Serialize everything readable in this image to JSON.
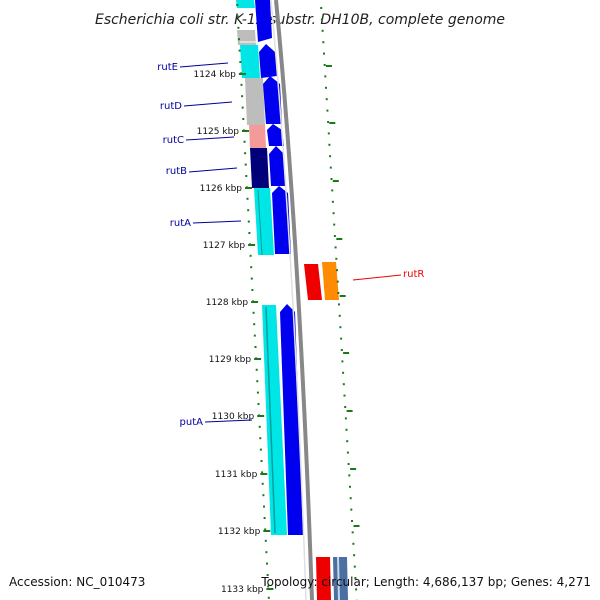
{
  "title": "Escherichia coli str. K-12 substr. DH10B, complete genome",
  "footer": {
    "accession": "Accession: NC_010473",
    "summary": "Topology: circular; Length: 4,686,137 bp; Genes: 4,271"
  },
  "colors": {
    "cyan": "#00e5e5",
    "blue": "#0000ee",
    "navy": "#00007a",
    "gray": "#bdbdbd",
    "pink": "#f59a9a",
    "red": "#ee0000",
    "orange": "#ff8c00",
    "backbone": "#888888",
    "tick": "#1a7a1a",
    "label_blue": "#00009a",
    "label_red": "#ee0000"
  },
  "ticks": [
    {
      "label": "1124 kbp"
    },
    {
      "label": "1125 kbp"
    },
    {
      "label": "1126 kbp"
    },
    {
      "label": "1127 kbp"
    },
    {
      "label": "1128 kbp"
    },
    {
      "label": "1129 kbp"
    },
    {
      "label": "1130 kbp"
    },
    {
      "label": "1131 kbp"
    },
    {
      "label": "1132 kbp"
    },
    {
      "label": "1133 kbp"
    }
  ],
  "genes": [
    {
      "name": "rutE",
      "color": "label_blue"
    },
    {
      "name": "rutD",
      "color": "label_blue"
    },
    {
      "name": "rutC",
      "color": "label_blue"
    },
    {
      "name": "rutB",
      "color": "label_blue"
    },
    {
      "name": "rutA",
      "color": "label_blue"
    },
    {
      "name": "rutR",
      "color": "label_red"
    },
    {
      "name": "putA",
      "color": "label_blue"
    }
  ]
}
